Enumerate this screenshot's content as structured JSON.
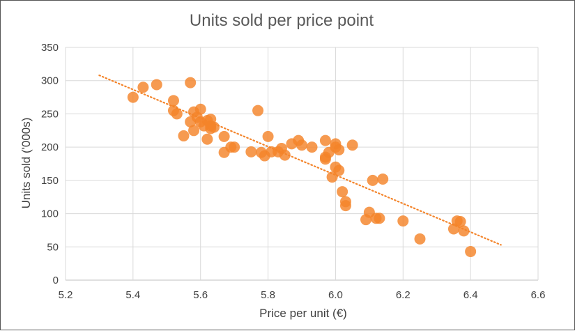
{
  "chart_data": {
    "type": "scatter",
    "title": "Units sold per price point",
    "xlabel": "Price per unit (€)",
    "ylabel": "Units sold ('000s)",
    "xlim": [
      5.2,
      6.6
    ],
    "ylim": [
      0,
      350
    ],
    "x_ticks": [
      "5.2",
      "5.4",
      "5.6",
      "5.8",
      "6.0",
      "6.2",
      "6.4",
      "6.6"
    ],
    "y_ticks": [
      "0",
      "50",
      "100",
      "150",
      "200",
      "250",
      "300",
      "350"
    ],
    "grid": true,
    "legend": "none",
    "series": [
      {
        "color": "#f4842a",
        "points": [
          [
            5.4,
            275
          ],
          [
            5.43,
            290
          ],
          [
            5.47,
            294
          ],
          [
            5.52,
            270
          ],
          [
            5.52,
            255
          ],
          [
            5.53,
            250
          ],
          [
            5.55,
            217
          ],
          [
            5.57,
            297
          ],
          [
            5.57,
            238
          ],
          [
            5.58,
            253
          ],
          [
            5.58,
            225
          ],
          [
            5.59,
            245
          ],
          [
            5.6,
            257
          ],
          [
            5.6,
            238
          ],
          [
            5.61,
            232
          ],
          [
            5.62,
            212
          ],
          [
            5.62,
            240
          ],
          [
            5.63,
            242
          ],
          [
            5.63,
            232
          ],
          [
            5.63,
            228
          ],
          [
            5.64,
            230
          ],
          [
            5.67,
            216
          ],
          [
            5.67,
            192
          ],
          [
            5.69,
            200
          ],
          [
            5.7,
            200
          ],
          [
            5.75,
            193
          ],
          [
            5.77,
            255
          ],
          [
            5.78,
            192
          ],
          [
            5.79,
            187
          ],
          [
            5.8,
            216
          ],
          [
            5.81,
            193
          ],
          [
            5.83,
            193
          ],
          [
            5.84,
            198
          ],
          [
            5.85,
            188
          ],
          [
            5.87,
            205
          ],
          [
            5.89,
            210
          ],
          [
            5.9,
            203
          ],
          [
            5.93,
            200
          ],
          [
            5.97,
            182
          ],
          [
            5.97,
            185
          ],
          [
            5.97,
            210
          ],
          [
            5.98,
            192
          ],
          [
            5.99,
            155
          ],
          [
            6.0,
            205
          ],
          [
            6.0,
            170
          ],
          [
            6.0,
            200
          ],
          [
            6.01,
            165
          ],
          [
            6.01,
            196
          ],
          [
            6.02,
            133
          ],
          [
            6.03,
            118
          ],
          [
            6.03,
            112
          ],
          [
            6.05,
            203
          ],
          [
            6.09,
            91
          ],
          [
            6.1,
            102
          ],
          [
            6.11,
            150
          ],
          [
            6.12,
            93
          ],
          [
            6.13,
            93
          ],
          [
            6.14,
            152
          ],
          [
            6.2,
            89
          ],
          [
            6.25,
            62
          ],
          [
            6.35,
            77
          ],
          [
            6.36,
            89
          ],
          [
            6.37,
            88
          ],
          [
            6.38,
            74
          ],
          [
            6.4,
            43
          ]
        ]
      }
    ],
    "trendline": {
      "style": "dotted",
      "color": "#f4842a",
      "from": [
        5.3,
        308
      ],
      "to": [
        6.49,
        53
      ]
    }
  }
}
